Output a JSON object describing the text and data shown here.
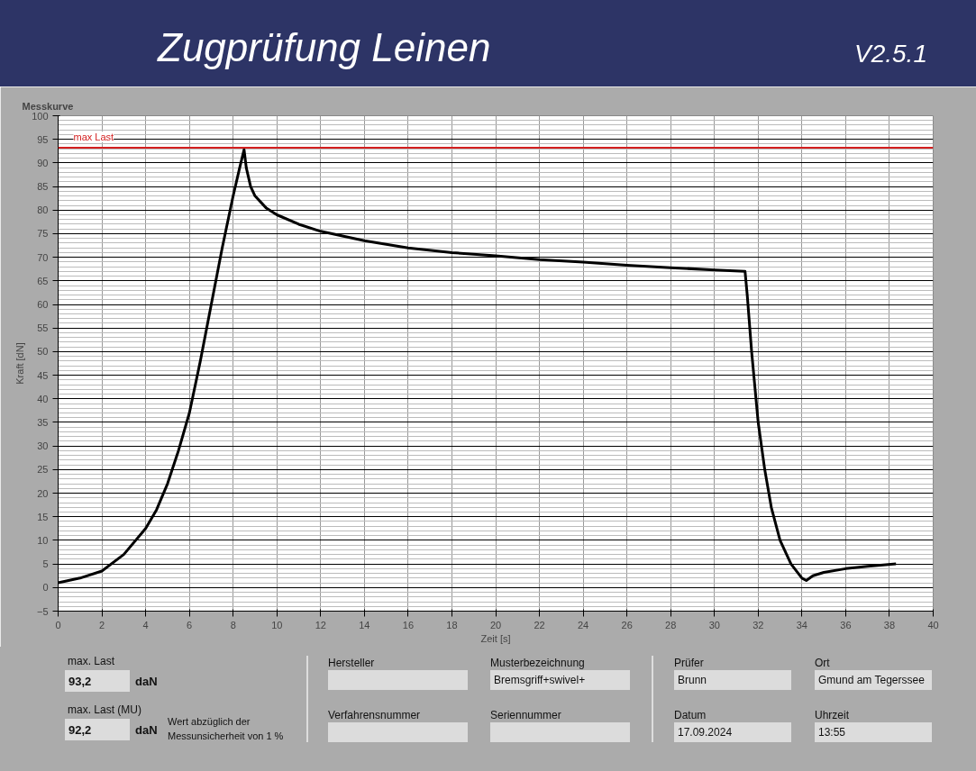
{
  "chart_data": {
    "type": "line",
    "title": "Zugprüfung Leinen",
    "xlabel": "Zeit [s]",
    "ylabel": "Kraft [dN]",
    "x": [
      0,
      1,
      2,
      3,
      4,
      4.5,
      5,
      5.5,
      6,
      6.5,
      7,
      7.5,
      8,
      8.3,
      8.5,
      8.6,
      8.8,
      9,
      9.5,
      10,
      11,
      12,
      14,
      16,
      18,
      20,
      22,
      24,
      26,
      28,
      30,
      31.4,
      31.5,
      31.7,
      32,
      32.3,
      32.6,
      33,
      33.5,
      34,
      34.2,
      34.5,
      35,
      36,
      37,
      38.3
    ],
    "series": [
      {
        "color": "#000000",
        "values": [
          1,
          2,
          3.5,
          7,
          12.5,
          16.5,
          22,
          29,
          37,
          48,
          60,
          72,
          83,
          89,
          92.8,
          89,
          85,
          83,
          80.5,
          79,
          77,
          75.5,
          73.5,
          72,
          71,
          70.3,
          69.5,
          69,
          68.3,
          67.8,
          67.3,
          67,
          62,
          50,
          35,
          25,
          17,
          10,
          5,
          2,
          1.5,
          2.5,
          3.2,
          4,
          4.5,
          5
        ]
      }
    ],
    "xlim": [
      0,
      40
    ],
    "xticks": [
      0,
      2,
      4,
      6,
      8,
      10,
      12,
      14,
      16,
      18,
      20,
      22,
      24,
      26,
      28,
      30,
      32,
      34,
      36,
      38,
      40
    ],
    "ylim": [
      -5,
      100
    ],
    "yticks": [
      -5,
      0,
      5,
      10,
      15,
      20,
      25,
      30,
      35,
      40,
      45,
      50,
      55,
      60,
      65,
      70,
      75,
      80,
      85,
      90,
      95,
      100
    ],
    "grid": true,
    "ref_lines": [
      {
        "axis": "y",
        "value": 93.2,
        "label": "max Last",
        "color": "#d42020"
      }
    ],
    "annotations": [
      "V2.5.1",
      "Messkurve",
      "max. Last",
      "93,2",
      "daN",
      "max. Last (MU)",
      "92,2",
      "daN",
      "Wert abzüglich der Messunsicherheit von 1 %",
      "Hersteller",
      "Verfahrensnummer",
      "Musterbezeichnung",
      "Bremsgriff+swivel+",
      "Seriennummer",
      "Prüfer",
      "Brunn",
      "Datum",
      "17.09.2024",
      "Ort",
      "Gmund am Tegerssee",
      "Uhrzeit",
      "13:55"
    ]
  }
}
